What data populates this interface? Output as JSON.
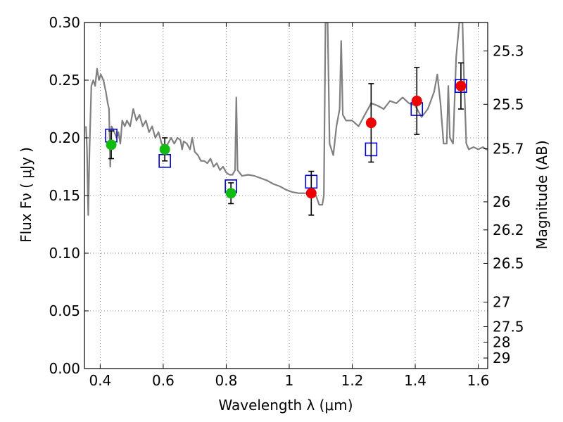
{
  "chart_data": {
    "type": "scatter",
    "xlabel": "Wavelength  λ (μm)",
    "ylabel": "Flux  Fν  ( μJy )",
    "y2label": "Magnitude (AB)",
    "xlim": [
      0.35,
      1.63
    ],
    "ylim": [
      0.0,
      0.3
    ],
    "grid": true,
    "x_ticks": [
      0.4,
      0.6,
      0.8,
      1.0,
      1.2,
      1.4,
      1.6
    ],
    "x_tick_labels": [
      "0.4",
      "0.6",
      "0.8",
      "1",
      "1.2",
      "1.4",
      "1.6"
    ],
    "y_ticks": [
      0.0,
      0.05,
      0.1,
      0.15,
      0.2,
      0.25,
      0.3
    ],
    "y_tick_labels": [
      "0.00",
      "0.05",
      "0.10",
      "0.15",
      "0.20",
      "0.25",
      "0.30"
    ],
    "y2_ticks": [
      {
        "mag": 25.3,
        "label": "25.3"
      },
      {
        "mag": 25.5,
        "label": "25.5"
      },
      {
        "mag": 25.7,
        "label": "25.7"
      },
      {
        "mag": 26.0,
        "label": "26"
      },
      {
        "mag": 26.2,
        "label": "26.2"
      },
      {
        "mag": 26.5,
        "label": "26.5"
      },
      {
        "mag": 27.0,
        "label": "27"
      },
      {
        "mag": 27.5,
        "label": "27.5"
      },
      {
        "mag": 28.0,
        "label": "28"
      },
      {
        "mag": 29.0,
        "label": "29"
      }
    ],
    "colors": {
      "sed": "#808080",
      "model": "#0000cc",
      "optical": "#11bb11",
      "nir": "#ee0000",
      "errorbar": "#000000",
      "grid": "#888888"
    },
    "sed_curve": [
      [
        0.355,
        0.21
      ],
      [
        0.358,
        0.19
      ],
      [
        0.362,
        0.133
      ],
      [
        0.366,
        0.19
      ],
      [
        0.372,
        0.245
      ],
      [
        0.378,
        0.25
      ],
      [
        0.384,
        0.245
      ],
      [
        0.39,
        0.26
      ],
      [
        0.396,
        0.25
      ],
      [
        0.402,
        0.255
      ],
      [
        0.41,
        0.25
      ],
      [
        0.418,
        0.24
      ],
      [
        0.424,
        0.23
      ],
      [
        0.428,
        0.225
      ],
      [
        0.432,
        0.175
      ],
      [
        0.436,
        0.21
      ],
      [
        0.445,
        0.205
      ],
      [
        0.452,
        0.2
      ],
      [
        0.458,
        0.205
      ],
      [
        0.464,
        0.195
      ],
      [
        0.47,
        0.215
      ],
      [
        0.478,
        0.21
      ],
      [
        0.485,
        0.215
      ],
      [
        0.495,
        0.21
      ],
      [
        0.505,
        0.225
      ],
      [
        0.515,
        0.215
      ],
      [
        0.525,
        0.22
      ],
      [
        0.535,
        0.21
      ],
      [
        0.545,
        0.215
      ],
      [
        0.555,
        0.205
      ],
      [
        0.565,
        0.21
      ],
      [
        0.575,
        0.2
      ],
      [
        0.585,
        0.205
      ],
      [
        0.595,
        0.195
      ],
      [
        0.605,
        0.19
      ],
      [
        0.615,
        0.195
      ],
      [
        0.625,
        0.2
      ],
      [
        0.635,
        0.195
      ],
      [
        0.645,
        0.2
      ],
      [
        0.655,
        0.198
      ],
      [
        0.66,
        0.19
      ],
      [
        0.665,
        0.197
      ],
      [
        0.675,
        0.195
      ],
      [
        0.685,
        0.19
      ],
      [
        0.692,
        0.2
      ],
      [
        0.7,
        0.188
      ],
      [
        0.71,
        0.185
      ],
      [
        0.72,
        0.18
      ],
      [
        0.73,
        0.18
      ],
      [
        0.74,
        0.178
      ],
      [
        0.75,
        0.182
      ],
      [
        0.76,
        0.175
      ],
      [
        0.77,
        0.178
      ],
      [
        0.78,
        0.172
      ],
      [
        0.79,
        0.175
      ],
      [
        0.8,
        0.17
      ],
      [
        0.81,
        0.168
      ],
      [
        0.82,
        0.168
      ],
      [
        0.828,
        0.172
      ],
      [
        0.832,
        0.235
      ],
      [
        0.836,
        0.172
      ],
      [
        0.85,
        0.167
      ],
      [
        0.87,
        0.168
      ],
      [
        0.89,
        0.167
      ],
      [
        0.91,
        0.165
      ],
      [
        0.93,
        0.163
      ],
      [
        0.95,
        0.16
      ],
      [
        0.97,
        0.158
      ],
      [
        0.99,
        0.155
      ],
      [
        1.01,
        0.153
      ],
      [
        1.03,
        0.152
      ],
      [
        1.05,
        0.152
      ],
      [
        1.07,
        0.152
      ],
      [
        1.085,
        0.15
      ],
      [
        1.095,
        0.142
      ],
      [
        1.105,
        0.142
      ],
      [
        1.11,
        0.15
      ],
      [
        1.115,
        0.3
      ],
      [
        1.122,
        0.3
      ],
      [
        1.128,
        0.195
      ],
      [
        1.14,
        0.185
      ],
      [
        1.15,
        0.21
      ],
      [
        1.16,
        0.225
      ],
      [
        1.165,
        0.284
      ],
      [
        1.17,
        0.22
      ],
      [
        1.18,
        0.215
      ],
      [
        1.2,
        0.215
      ],
      [
        1.22,
        0.21
      ],
      [
        1.24,
        0.22
      ],
      [
        1.26,
        0.23
      ],
      [
        1.28,
        0.228
      ],
      [
        1.3,
        0.225
      ],
      [
        1.32,
        0.232
      ],
      [
        1.34,
        0.23
      ],
      [
        1.36,
        0.235
      ],
      [
        1.38,
        0.23
      ],
      [
        1.4,
        0.228
      ],
      [
        1.42,
        0.218
      ],
      [
        1.44,
        0.225
      ],
      [
        1.46,
        0.24
      ],
      [
        1.47,
        0.255
      ],
      [
        1.48,
        0.23
      ],
      [
        1.49,
        0.195
      ],
      [
        1.5,
        0.195
      ],
      [
        1.505,
        0.245
      ],
      [
        1.51,
        0.2
      ],
      [
        1.52,
        0.195
      ],
      [
        1.53,
        0.27
      ],
      [
        1.54,
        0.3
      ],
      [
        1.55,
        0.3
      ],
      [
        1.555,
        0.25
      ],
      [
        1.562,
        0.195
      ],
      [
        1.57,
        0.19
      ],
      [
        1.585,
        0.192
      ],
      [
        1.6,
        0.19
      ],
      [
        1.615,
        0.192
      ],
      [
        1.625,
        0.19
      ],
      [
        1.63,
        0.19
      ]
    ],
    "model_points": [
      {
        "x": 0.435,
        "y": 0.202
      },
      {
        "x": 0.605,
        "y": 0.18
      },
      {
        "x": 0.815,
        "y": 0.158
      },
      {
        "x": 1.07,
        "y": 0.162
      },
      {
        "x": 1.26,
        "y": 0.19
      },
      {
        "x": 1.405,
        "y": 0.225
      },
      {
        "x": 1.545,
        "y": 0.245
      }
    ],
    "observed_optical": [
      {
        "x": 0.435,
        "y": 0.194,
        "err": 0.012
      },
      {
        "x": 0.605,
        "y": 0.19,
        "err": 0.01
      },
      {
        "x": 0.815,
        "y": 0.152,
        "err": 0.009
      }
    ],
    "observed_nir": [
      {
        "x": 1.07,
        "y": 0.152,
        "err": 0.019
      },
      {
        "x": 1.26,
        "y": 0.213,
        "err": 0.034
      },
      {
        "x": 1.405,
        "y": 0.232,
        "err": 0.029
      },
      {
        "x": 1.545,
        "y": 0.245,
        "err": 0.02
      }
    ]
  }
}
